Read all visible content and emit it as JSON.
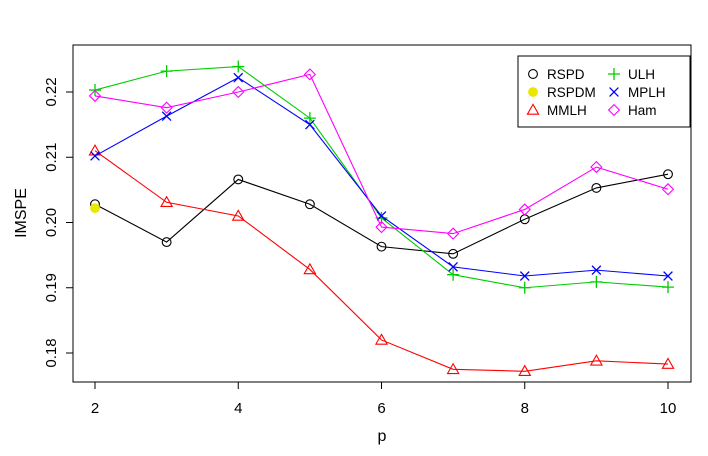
{
  "chart_data": {
    "type": "line",
    "xlabel": "p",
    "ylabel": "IMSPE",
    "xlim": [
      2,
      10
    ],
    "ylim": [
      0.175,
      0.224
    ],
    "x_ticks": [
      "2",
      "4",
      "6",
      "8",
      "10"
    ],
    "y_ticks": [
      "0.18",
      "0.19",
      "0.20",
      "0.21",
      "0.22"
    ],
    "legend_placement": "top-right",
    "series": [
      {
        "name": "RSPD",
        "color": "#000000",
        "marker": "circle",
        "lines": true,
        "points": [
          [
            2,
            0.2028
          ],
          [
            3,
            0.197
          ],
          [
            4,
            0.2066
          ],
          [
            5,
            0.2028
          ],
          [
            6,
            0.1963
          ],
          [
            7,
            0.1952
          ],
          [
            8,
            0.2005
          ],
          [
            9,
            0.2053
          ],
          [
            10,
            0.2074
          ]
        ]
      },
      {
        "name": "RSPDM",
        "color": "#E8E800",
        "marker": "filled-circle",
        "lines": false,
        "points": [
          [
            2,
            0.2022
          ]
        ]
      },
      {
        "name": "MMLH",
        "color": "#FF0000",
        "marker": "triangle",
        "lines": true,
        "points": [
          [
            2,
            0.211
          ],
          [
            3,
            0.2031
          ],
          [
            4,
            0.201
          ],
          [
            5,
            0.1928
          ],
          [
            6,
            0.182
          ],
          [
            7,
            0.1775
          ],
          [
            8,
            0.1772
          ],
          [
            9,
            0.1788
          ],
          [
            10,
            0.1783
          ]
        ]
      },
      {
        "name": "ULH",
        "color": "#00CC00",
        "marker": "plus",
        "lines": true,
        "points": [
          [
            2,
            0.2203
          ],
          [
            3,
            0.2232
          ],
          [
            4,
            0.2239
          ],
          [
            5,
            0.216
          ],
          [
            6,
            0.2007
          ],
          [
            7,
            0.192
          ],
          [
            8,
            0.19
          ],
          [
            9,
            0.1909
          ],
          [
            10,
            0.1901
          ]
        ]
      },
      {
        "name": "MPLH",
        "color": "#0000FF",
        "marker": "cross",
        "lines": true,
        "points": [
          [
            2,
            0.2102
          ],
          [
            3,
            0.2163
          ],
          [
            4,
            0.2222
          ],
          [
            5,
            0.215
          ],
          [
            6,
            0.201
          ],
          [
            7,
            0.1932
          ],
          [
            8,
            0.1918
          ],
          [
            9,
            0.1927
          ],
          [
            10,
            0.1918
          ]
        ]
      },
      {
        "name": "Ham",
        "color": "#FF00FF",
        "marker": "diamond",
        "lines": true,
        "points": [
          [
            2,
            0.2194
          ],
          [
            3,
            0.2176
          ],
          [
            4,
            0.22
          ],
          [
            5,
            0.2227
          ],
          [
            6,
            0.1993
          ],
          [
            7,
            0.1983
          ],
          [
            8,
            0.202
          ],
          [
            9,
            0.2085
          ],
          [
            10,
            0.2051
          ]
        ]
      }
    ]
  }
}
